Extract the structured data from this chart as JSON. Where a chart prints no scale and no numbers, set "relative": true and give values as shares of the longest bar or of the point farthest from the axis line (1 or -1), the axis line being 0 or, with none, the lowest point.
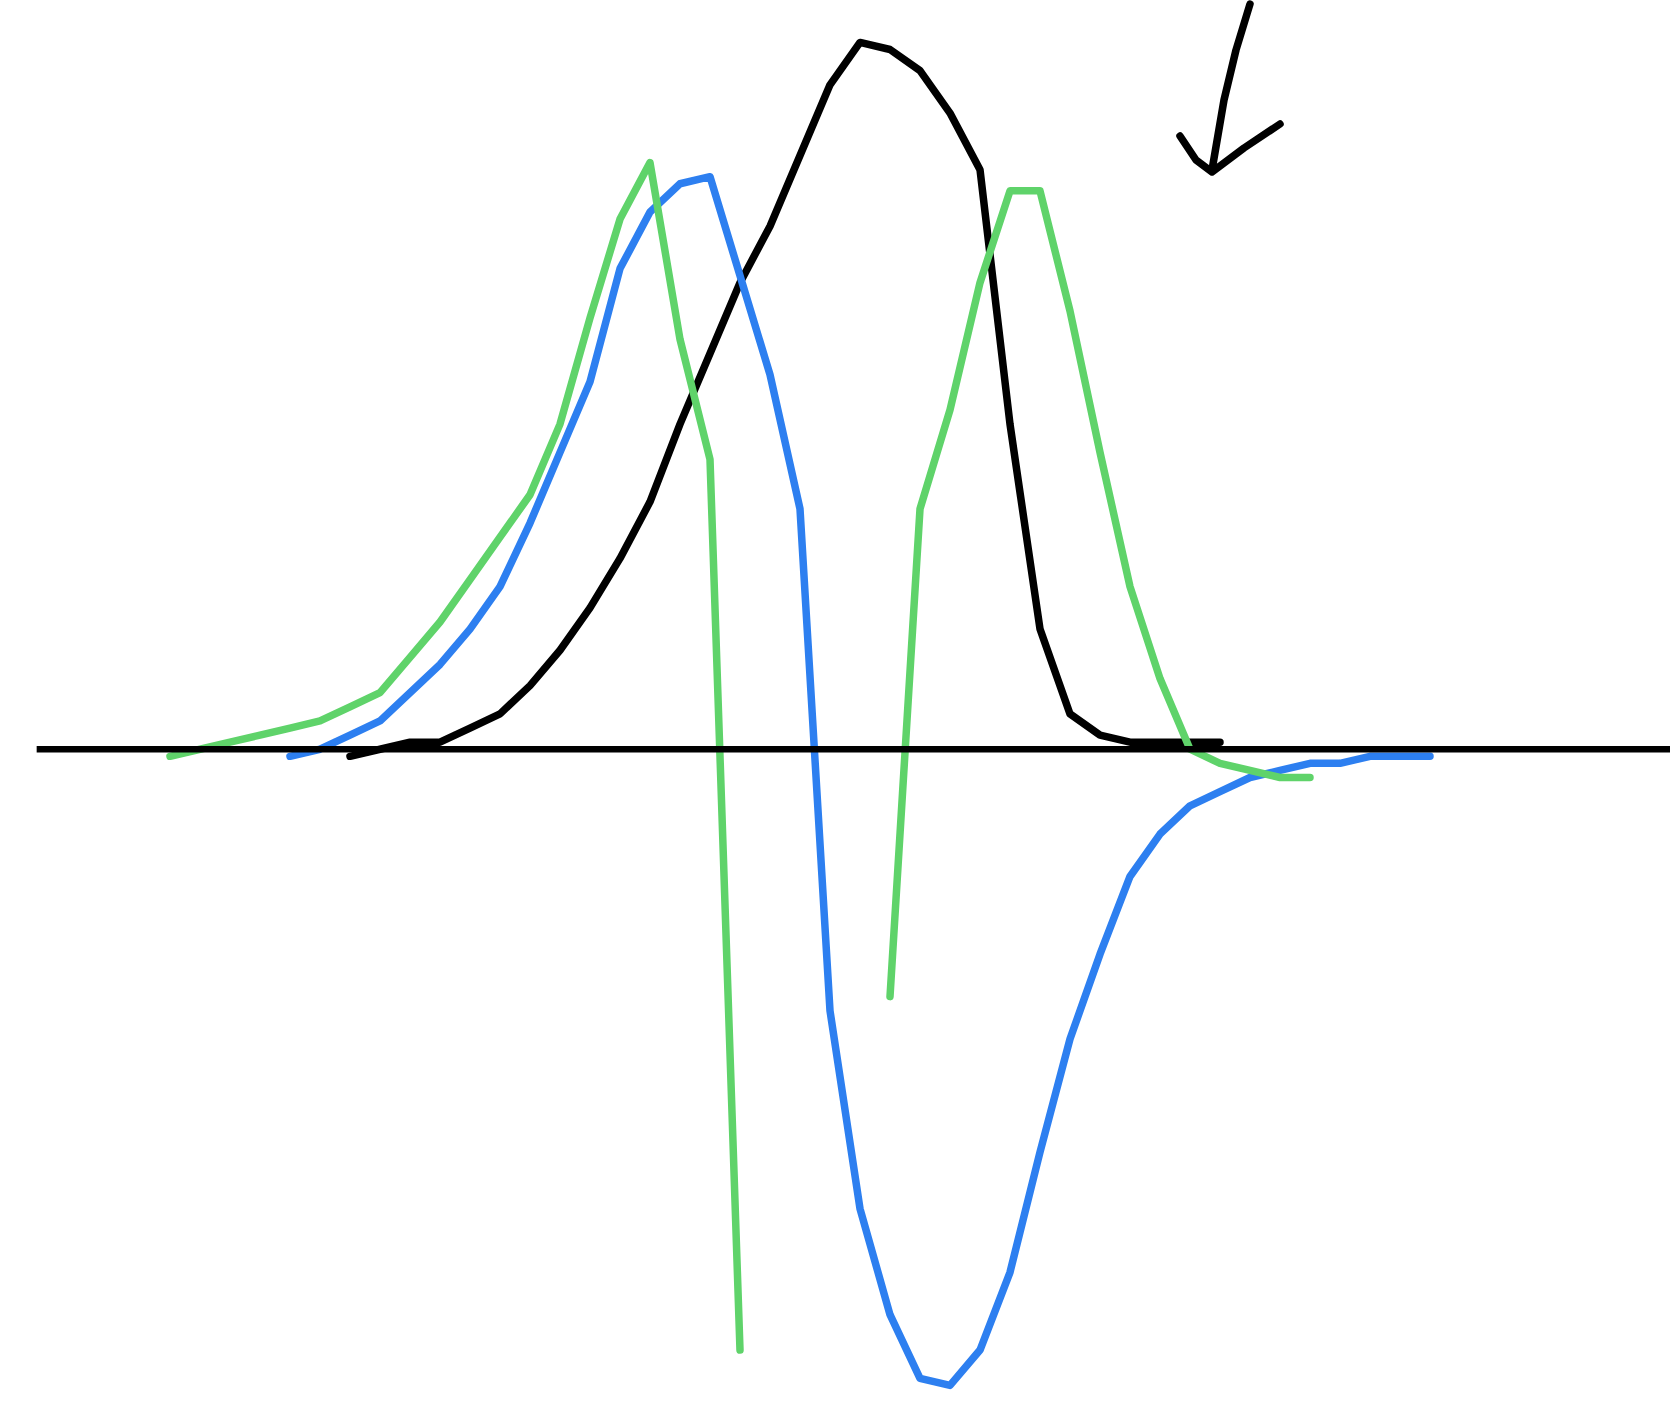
{
  "chart_data": {
    "type": "line",
    "relative": true,
    "marker": "none",
    "line_style": "solid",
    "categories": [
      null,
      null,
      null,
      null,
      null,
      null,
      null,
      null,
      null,
      null,
      null,
      null,
      null,
      null,
      null,
      null,
      null,
      null,
      null,
      null,
      null,
      null,
      null,
      null,
      null,
      null,
      null,
      null,
      null,
      null,
      null,
      null,
      null,
      null,
      null,
      null,
      null,
      null,
      null,
      null,
      null,
      null,
      null
    ],
    "series": [
      {
        "color": "#000000",
        "values": [
          null,
          null,
          null,
          null,
          null,
          null,
          -0.01,
          0.0,
          0.01,
          0.01,
          0.03,
          0.05,
          0.09,
          0.14,
          0.2,
          0.27,
          0.35,
          0.46,
          0.56,
          0.66,
          0.74,
          0.84,
          0.94,
          1.0,
          0.99,
          0.96,
          0.9,
          0.82,
          0.46,
          0.17,
          0.05,
          0.02,
          0.01,
          0.01,
          0.01,
          0.01,
          null,
          null,
          null,
          null,
          null,
          null,
          null
        ]
      },
      {
        "color": "#2d7ff0",
        "values": [
          null,
          null,
          null,
          null,
          -0.01,
          0.0,
          0.02,
          0.04,
          0.08,
          0.12,
          0.17,
          0.23,
          0.32,
          0.42,
          0.52,
          0.68,
          0.76,
          0.8,
          0.81,
          0.67,
          0.53,
          0.34,
          -0.37,
          -0.65,
          -0.8,
          -0.89,
          -0.9,
          -0.85,
          -0.74,
          -0.57,
          -0.41,
          -0.29,
          -0.18,
          -0.12,
          -0.08,
          -0.06,
          -0.04,
          -0.03,
          -0.02,
          -0.02,
          -0.01,
          -0.01,
          -0.01
        ]
      },
      {
        "color": "#5fd36a",
        "values": [
          -0.01,
          0.0,
          0.01,
          0.02,
          0.03,
          0.04,
          0.06,
          0.08,
          0.13,
          0.18,
          0.24,
          0.3,
          0.36,
          0.46,
          0.61,
          0.75,
          0.83,
          0.58,
          0.41,
          -0.85,
          null,
          null,
          null,
          null,
          -0.35,
          0.34,
          0.48,
          0.66,
          0.79,
          0.79,
          0.62,
          0.42,
          0.23,
          0.1,
          0.0,
          -0.02,
          -0.03,
          -0.04,
          -0.04,
          null,
          null,
          null,
          null
        ]
      }
    ]
  }
}
